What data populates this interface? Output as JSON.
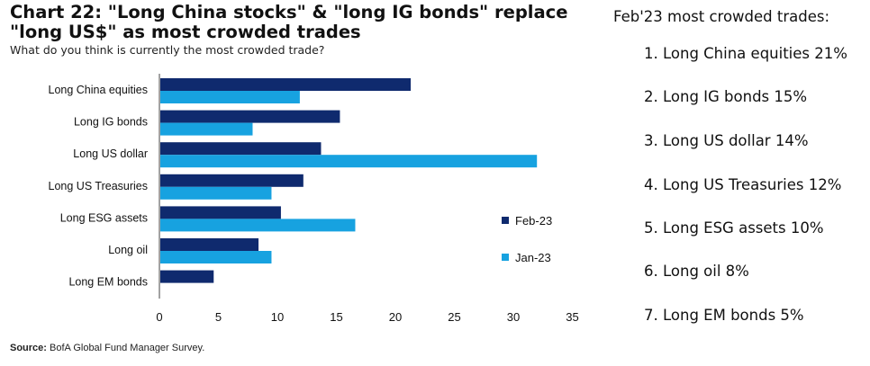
{
  "title": "Chart 22: \"Long China stocks\" & \"long IG bonds\" replace \"long US$\" as most crowded trades",
  "subtitle": "What do you think is currently the most crowded trade?",
  "source_label": "Source:",
  "source_text": " BofA Global Fund Manager Survey.",
  "colors": {
    "feb": "#0f2a6e",
    "jan": "#17a2e0",
    "axis": "#444444"
  },
  "chart_data": {
    "type": "bar",
    "orientation": "horizontal",
    "categories": [
      "Long China equities",
      "Long IG bonds",
      "Long US dollar",
      "Long US Treasuries",
      "Long ESG assets",
      "Long oil",
      "Long EM bonds"
    ],
    "series": [
      {
        "name": "Feb-23",
        "values": [
          21.3,
          15.3,
          13.7,
          12.2,
          10.3,
          8.4,
          4.6
        ]
      },
      {
        "name": "Jan-23",
        "values": [
          11.9,
          7.9,
          32.0,
          9.5,
          16.6,
          9.5,
          null
        ]
      }
    ],
    "xlim": [
      0,
      35
    ],
    "xticks": [
      "0",
      "5",
      "10",
      "15",
      "20",
      "25",
      "30",
      "35"
    ],
    "grid": false,
    "legend_position": "right"
  },
  "side_panel": {
    "title": "Feb'23 most crowded trades:",
    "items": [
      "1. Long China equities 21%",
      "2. Long IG bonds 15%",
      "3. Long US dollar 14%",
      "4. Long US Treasuries 12%",
      "5. Long ESG assets 10%",
      "6. Long oil 8%",
      "7. Long EM bonds 5%"
    ]
  }
}
